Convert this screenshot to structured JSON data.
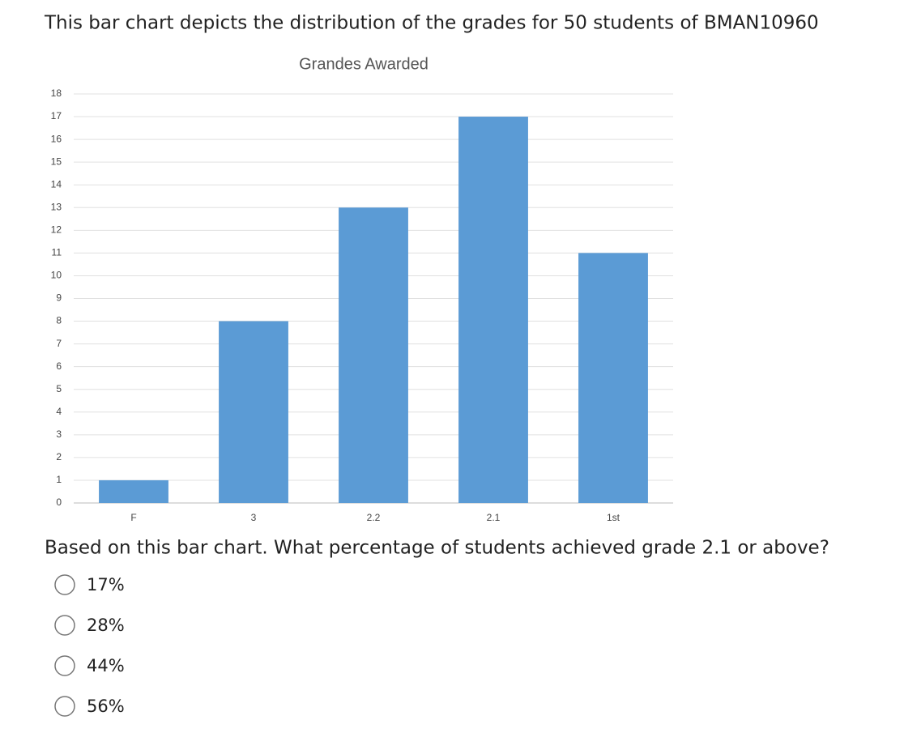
{
  "intro": "This bar chart depicts the distribution of the grades for 50 students of BMAN10960",
  "chart_data": {
    "type": "bar",
    "title": "Grandes Awarded",
    "categories": [
      "F",
      "3",
      "2.2",
      "2.1",
      "1st"
    ],
    "values": [
      1,
      8,
      13,
      17,
      11
    ],
    "color": "#5b9bd5",
    "ylim": [
      0,
      18
    ],
    "yticks": [
      0,
      1,
      2,
      3,
      4,
      5,
      6,
      7,
      8,
      9,
      10,
      11,
      12,
      13,
      14,
      15,
      16,
      17,
      18
    ],
    "grid": true
  },
  "question": "Based on this bar chart. What percentage of students achieved grade 2.1 or above?",
  "options": [
    "17%",
    "28%",
    "44%",
    "56%"
  ]
}
